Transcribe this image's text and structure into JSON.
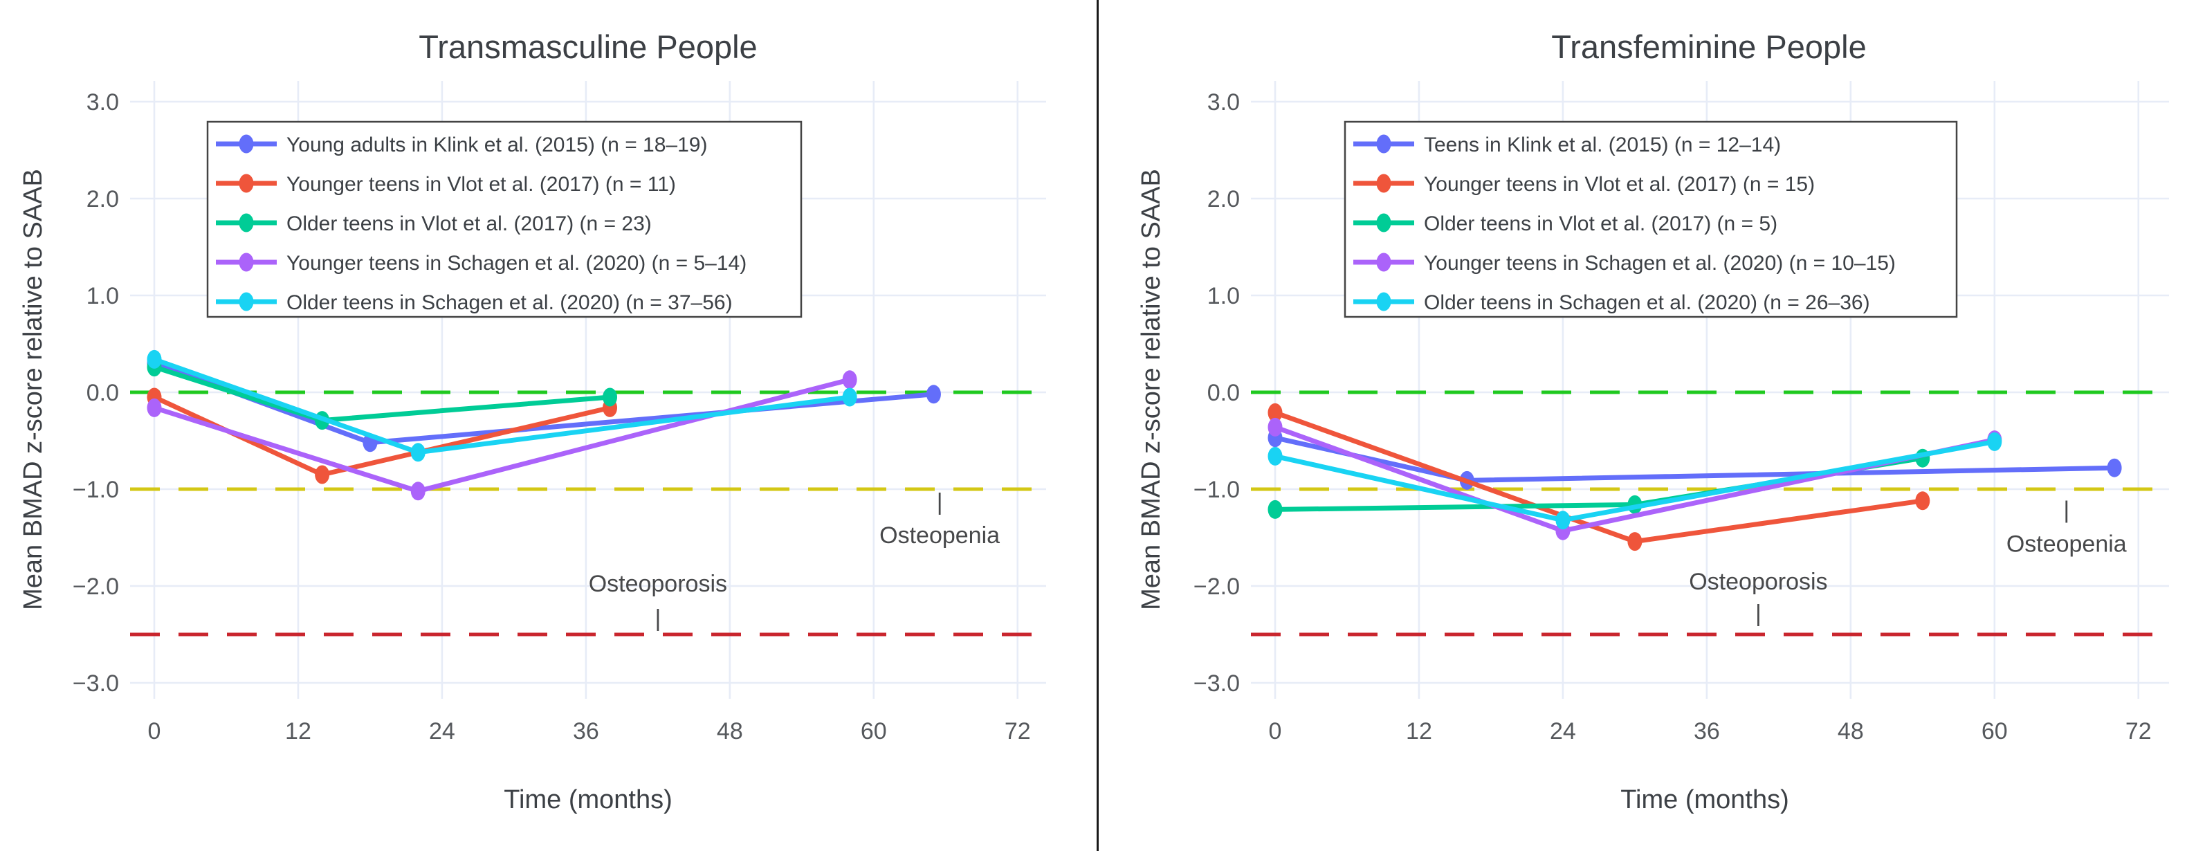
{
  "figure": {
    "background": "#ffffff",
    "divider_color": "#1a1a1a",
    "grid_color": "#e7ecf7",
    "tick_label_color": "#55585c",
    "title_color": "#3c4045",
    "annotation_color": "#47484a",
    "legend_border_color": "#444444",
    "legend_background": "#ffffff"
  },
  "chart_data": [
    {
      "type": "line",
      "title": "Transmasculine People",
      "xlabel": "Time (months)",
      "ylabel": "Mean BMAD z-score relative to SAAB",
      "x_tick_values": [
        0,
        12,
        24,
        36,
        48,
        60,
        72
      ],
      "x_tick_labels": [
        "0",
        "12",
        "24",
        "36",
        "48",
        "60",
        "72"
      ],
      "y_tick_values": [
        3,
        2,
        1,
        0,
        -1,
        -2,
        -3
      ],
      "y_tick_labels": [
        "3.0",
        "2.0",
        "1.0",
        "0.0",
        "−1.0",
        "−2.0",
        "−3.0"
      ],
      "xlim": [
        -2,
        74.5
      ],
      "ylim": [
        -3.2,
        3.2
      ],
      "grid": true,
      "legend_position": "upper-left",
      "ref_lines": [
        {
          "y": 0.0,
          "color": "#1fc91f",
          "meaning": "zero line"
        },
        {
          "y": -1.0,
          "color": "#d3c715",
          "meaning": "osteopenia threshold"
        },
        {
          "y": -2.5,
          "color": "#c9252d",
          "meaning": "osteoporosis threshold"
        }
      ],
      "annotations": [
        {
          "text": "Osteoporosis",
          "x": 42,
          "y": -1.97
        },
        {
          "text": "|",
          "x": 42,
          "y": -2.33
        },
        {
          "text": "Osteopenia",
          "x": 65.5,
          "y": -1.47
        },
        {
          "text": "|",
          "x": 65.5,
          "y": -1.13
        }
      ],
      "series": [
        {
          "name": "Young adults in Klink et al. (2015) (n = 18–19)",
          "color": "#636EFA",
          "x": [
            0,
            18,
            65
          ],
          "y": [
            0.3,
            -0.52,
            -0.02
          ]
        },
        {
          "name": "Younger teens in Vlot et al. (2017) (n = 11)",
          "color": "#EF553B",
          "x": [
            0,
            14,
            38
          ],
          "y": [
            -0.05,
            -0.85,
            -0.16
          ]
        },
        {
          "name": "Older teens in Vlot et al. (2017) (n = 23)",
          "color": "#00CC96",
          "x": [
            0,
            14,
            38
          ],
          "y": [
            0.26,
            -0.29,
            -0.05
          ]
        },
        {
          "name": "Younger teens in Schagen et al. (2020) (n = 5–14)",
          "color": "#AB63FA",
          "x": [
            0,
            22,
            58
          ],
          "y": [
            -0.16,
            -1.02,
            0.13
          ]
        },
        {
          "name": "Older teens in Schagen et al. (2020) (n = 37–56)",
          "color": "#19D3F3",
          "x": [
            0,
            22,
            58
          ],
          "y": [
            0.34,
            -0.62,
            -0.05
          ]
        }
      ]
    },
    {
      "type": "line",
      "title": "Transfeminine People",
      "xlabel": "Time (months)",
      "ylabel": "Mean BMAD z-score relative to SAAB",
      "x_tick_values": [
        0,
        12,
        24,
        36,
        48,
        60,
        72
      ],
      "x_tick_labels": [
        "0",
        "12",
        "24",
        "36",
        "48",
        "60",
        "72"
      ],
      "y_tick_values": [
        3,
        2,
        1,
        0,
        -1,
        -2,
        -3
      ],
      "y_tick_labels": [
        "3.0",
        "2.0",
        "1.0",
        "0.0",
        "−1.0",
        "−2.0",
        "−3.0"
      ],
      "xlim": [
        -2,
        74.5
      ],
      "ylim": [
        -3.2,
        3.2
      ],
      "grid": true,
      "legend_position": "upper-left",
      "ref_lines": [
        {
          "y": 0.0,
          "color": "#1fc91f",
          "meaning": "zero line"
        },
        {
          "y": -1.0,
          "color": "#d3c715",
          "meaning": "osteopenia threshold"
        },
        {
          "y": -2.5,
          "color": "#c9252d",
          "meaning": "osteoporosis threshold"
        }
      ],
      "annotations": [
        {
          "text": "Osteoporosis",
          "x": 40.3,
          "y": -1.95
        },
        {
          "text": "|",
          "x": 40.3,
          "y": -2.28
        },
        {
          "text": "Osteopenia",
          "x": 66,
          "y": -1.56
        },
        {
          "text": "|",
          "x": 66,
          "y": -1.21
        }
      ],
      "series": [
        {
          "name": "Teens in Klink et al. (2015) (n = 12–14)",
          "color": "#636EFA",
          "x": [
            0,
            16,
            70
          ],
          "y": [
            -0.47,
            -0.91,
            -0.78
          ]
        },
        {
          "name": "Younger teens in Vlot et al. (2017) (n = 15)",
          "color": "#EF553B",
          "x": [
            0,
            30,
            54
          ],
          "y": [
            -0.21,
            -1.54,
            -1.12
          ]
        },
        {
          "name": "Older teens in Vlot et al. (2017) (n = 5)",
          "color": "#00CC96",
          "x": [
            0,
            30,
            54
          ],
          "y": [
            -1.21,
            -1.16,
            -0.68
          ]
        },
        {
          "name": "Younger teens in Schagen et al. (2020) (n = 10–15)",
          "color": "#AB63FA",
          "x": [
            0,
            24,
            60
          ],
          "y": [
            -0.36,
            -1.43,
            -0.49
          ]
        },
        {
          "name": "Older teens in Schagen et al. (2020) (n = 26–36)",
          "color": "#19D3F3",
          "x": [
            0,
            24,
            60
          ],
          "y": [
            -0.66,
            -1.32,
            -0.51
          ]
        }
      ]
    }
  ]
}
